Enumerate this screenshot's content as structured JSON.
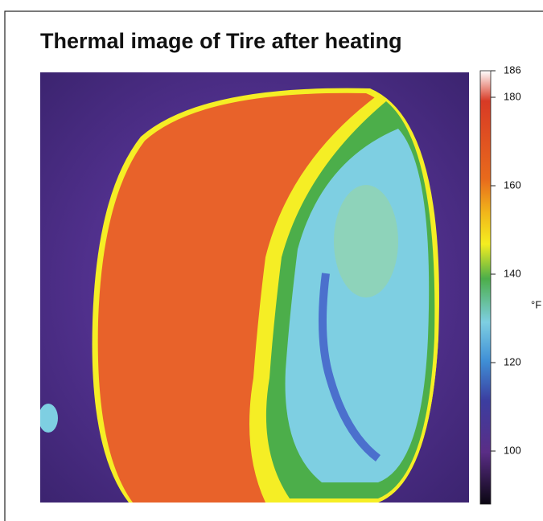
{
  "title": "Thermal image of Tire after heating",
  "colorbar": {
    "unit": "°F",
    "lim": [
      88,
      186
    ],
    "ticks": [
      186,
      180,
      160,
      140,
      120,
      100
    ]
  }
}
